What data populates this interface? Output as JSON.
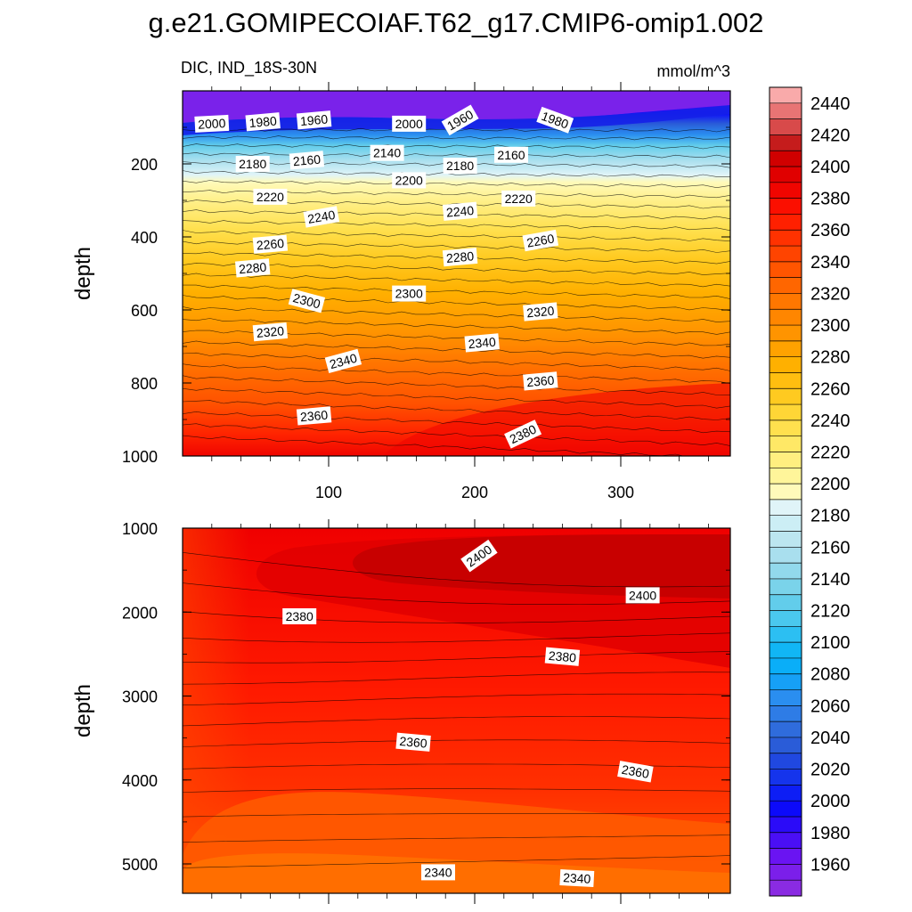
{
  "chart_data": {
    "type": "contour",
    "title": "g.e21.GOMIPECOIAF.T62_g17.CMIP6-omip1.002",
    "region": "DIC, IND_18S-30N",
    "units": "mmol/m^3",
    "panels": [
      {
        "name": "upper",
        "ylabel": "depth",
        "ylim": [
          0,
          1000
        ],
        "yticks": [
          200,
          400,
          600,
          800,
          1000
        ],
        "ytick_labels": [
          "200",
          "400",
          "600",
          "800",
          "1000"
        ],
        "xlim": [
          0,
          375
        ],
        "xticks": [
          100,
          200,
          300
        ],
        "xtick_labels": [
          "100",
          "200",
          "300"
        ],
        "contour_labels": [
          {
            "text": "2000",
            "x": 20,
            "y": 90,
            "rot": -3
          },
          {
            "text": "1980",
            "x": 55,
            "y": 85,
            "rot": -5
          },
          {
            "text": "1960",
            "x": 90,
            "y": 80,
            "rot": -5
          },
          {
            "text": "2000",
            "x": 155,
            "y": 90,
            "rot": 0
          },
          {
            "text": "1960",
            "x": 190,
            "y": 80,
            "rot": -30
          },
          {
            "text": "1980",
            "x": 255,
            "y": 80,
            "rot": 20
          },
          {
            "text": "2180",
            "x": 48,
            "y": 200,
            "rot": 0
          },
          {
            "text": "2160",
            "x": 85,
            "y": 190,
            "rot": -5
          },
          {
            "text": "2140",
            "x": 140,
            "y": 170,
            "rot": 0
          },
          {
            "text": "2180",
            "x": 190,
            "y": 205,
            "rot": 0
          },
          {
            "text": "2160",
            "x": 225,
            "y": 175,
            "rot": 0
          },
          {
            "text": "2200",
            "x": 155,
            "y": 245,
            "rot": 0
          },
          {
            "text": "2220",
            "x": 60,
            "y": 290,
            "rot": 0
          },
          {
            "text": "2220",
            "x": 230,
            "y": 295,
            "rot": 0
          },
          {
            "text": "2240",
            "x": 95,
            "y": 345,
            "rot": -10
          },
          {
            "text": "2240",
            "x": 190,
            "y": 330,
            "rot": -5
          },
          {
            "text": "2260",
            "x": 60,
            "y": 420,
            "rot": -5
          },
          {
            "text": "2260",
            "x": 245,
            "y": 410,
            "rot": -10
          },
          {
            "text": "2280",
            "x": 48,
            "y": 485,
            "rot": -5
          },
          {
            "text": "2280",
            "x": 190,
            "y": 455,
            "rot": -5
          },
          {
            "text": "2300",
            "x": 85,
            "y": 575,
            "rot": 15
          },
          {
            "text": "2300",
            "x": 155,
            "y": 555,
            "rot": 0
          },
          {
            "text": "2320",
            "x": 245,
            "y": 605,
            "rot": -5
          },
          {
            "text": "2320",
            "x": 60,
            "y": 660,
            "rot": -5
          },
          {
            "text": "2340",
            "x": 205,
            "y": 690,
            "rot": -5
          },
          {
            "text": "2340",
            "x": 110,
            "y": 740,
            "rot": -15
          },
          {
            "text": "2360",
            "x": 245,
            "y": 795,
            "rot": -5
          },
          {
            "text": "2360",
            "x": 90,
            "y": 890,
            "rot": -5
          },
          {
            "text": "2380",
            "x": 233,
            "y": 940,
            "rot": -25
          }
        ]
      },
      {
        "name": "lower",
        "ylabel": "depth",
        "ylim": [
          1000,
          5350
        ],
        "yticks": [
          1000,
          2000,
          3000,
          4000,
          5000
        ],
        "ytick_labels": [
          "1000",
          "2000",
          "3000",
          "4000",
          "5000"
        ],
        "xlim": [
          0,
          375
        ],
        "xticks": [
          100,
          200,
          300
        ],
        "contour_labels": [
          {
            "text": "2400",
            "x": 203,
            "y": 1330,
            "rot": -35
          },
          {
            "text": "2400",
            "x": 315,
            "y": 1800,
            "rot": 0
          },
          {
            "text": "2380",
            "x": 80,
            "y": 2050,
            "rot": 0
          },
          {
            "text": "2380",
            "x": 260,
            "y": 2530,
            "rot": 5
          },
          {
            "text": "2360",
            "x": 158,
            "y": 3550,
            "rot": 5
          },
          {
            "text": "2360",
            "x": 310,
            "y": 3900,
            "rot": 10
          },
          {
            "text": "2340",
            "x": 175,
            "y": 5100,
            "rot": 0
          },
          {
            "text": "2340",
            "x": 270,
            "y": 5170,
            "rot": 3
          }
        ]
      }
    ],
    "colorbar": {
      "levels": [
        1940,
        1950,
        1960,
        1970,
        1980,
        1990,
        2000,
        2010,
        2020,
        2030,
        2040,
        2050,
        2060,
        2070,
        2080,
        2090,
        2100,
        2110,
        2120,
        2130,
        2140,
        2150,
        2160,
        2170,
        2180,
        2190,
        2200,
        2210,
        2220,
        2230,
        2240,
        2250,
        2260,
        2270,
        2280,
        2290,
        2300,
        2310,
        2320,
        2330,
        2340,
        2350,
        2360,
        2370,
        2380,
        2390,
        2400,
        2410,
        2420,
        2430,
        2440,
        2450
      ],
      "tick_labels": [
        "1960",
        "1980",
        "2000",
        "2020",
        "2040",
        "2060",
        "2080",
        "2100",
        "2120",
        "2140",
        "2160",
        "2180",
        "2200",
        "2220",
        "2240",
        "2260",
        "2280",
        "2300",
        "2320",
        "2340",
        "2360",
        "2380",
        "2400",
        "2420",
        "2440"
      ],
      "colors": [
        "#8a2be2",
        "#7b1fea",
        "#6a14f2",
        "#4a0ff5",
        "#2b0bf8",
        "#0c0afa",
        "#0d1ef5",
        "#1534ec",
        "#2048e0",
        "#2a5cd8",
        "#2f6cdc",
        "#2e7ce6",
        "#2a8ef0",
        "#16a0f6",
        "#0aaef8",
        "#11b6f5",
        "#2cbff2",
        "#4ac8ee",
        "#62cdeb",
        "#7ad3ea",
        "#92d9ec",
        "#a9dfee",
        "#bce6f0",
        "#cceef5",
        "#e0f4f8",
        "#fffaba",
        "#fff59a",
        "#ffef80",
        "#ffe866",
        "#ffe04e",
        "#ffd636",
        "#ffca20",
        "#ffbe10",
        "#ffb000",
        "#ffa200",
        "#ff9400",
        "#ff8600",
        "#ff7700",
        "#ff6600",
        "#ff5500",
        "#ff4400",
        "#ff3200",
        "#ff2000",
        "#fb0f00",
        "#f00500",
        "#e00000",
        "#d00000",
        "#c51c1c",
        "#d84a4a",
        "#e87474",
        "#f9aaaa"
      ]
    }
  }
}
